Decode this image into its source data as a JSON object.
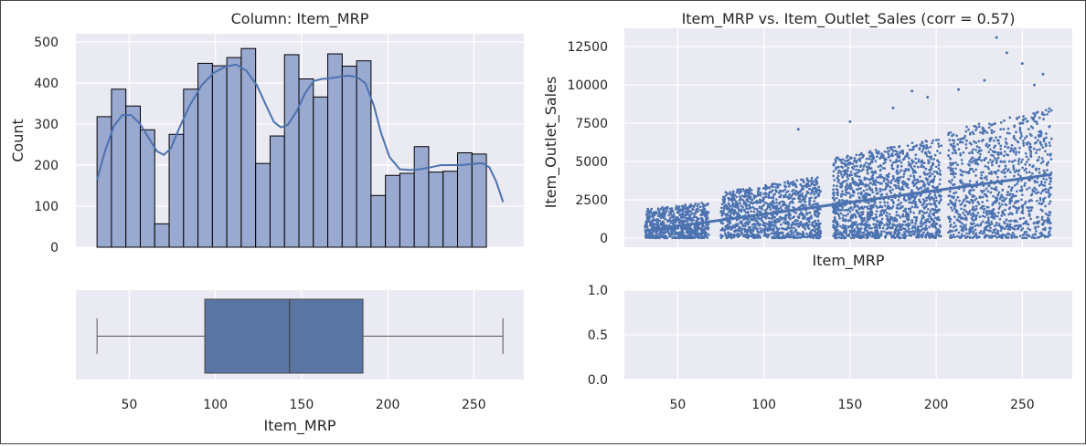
{
  "chart_data": [
    {
      "id": "hist",
      "type": "bar",
      "title": "Column: Item_MRP",
      "xlabel": "",
      "ylabel": "Count",
      "ylim": [
        0,
        520
      ],
      "xlim": [
        19,
        279
      ],
      "yticks": [
        0,
        100,
        200,
        300,
        400,
        500
      ],
      "bin_width": 8.37,
      "bin_start": 31.29,
      "bin_edges_note": "",
      "values": [
        318,
        385,
        344,
        286,
        57,
        275,
        385,
        448,
        442,
        462,
        484,
        204,
        271,
        469,
        410,
        366,
        471,
        441,
        454,
        126,
        175,
        180,
        245,
        183,
        185,
        230,
        227
      ],
      "kde": [
        [
          31.3,
          165
        ],
        [
          36,
          235
        ],
        [
          41,
          295
        ],
        [
          46,
          322
        ],
        [
          51,
          322
        ],
        [
          56,
          302
        ],
        [
          61,
          268
        ],
        [
          66,
          234
        ],
        [
          70,
          225
        ],
        [
          74,
          240
        ],
        [
          79,
          290
        ],
        [
          85,
          345
        ],
        [
          92,
          395
        ],
        [
          99,
          425
        ],
        [
          106,
          440
        ],
        [
          112,
          445
        ],
        [
          118,
          430
        ],
        [
          124,
          395
        ],
        [
          130,
          340
        ],
        [
          134,
          305
        ],
        [
          138,
          292
        ],
        [
          142,
          298
        ],
        [
          147,
          330
        ],
        [
          152,
          375
        ],
        [
          157,
          405
        ],
        [
          162,
          410
        ],
        [
          167,
          412
        ],
        [
          172,
          415
        ],
        [
          177,
          418
        ],
        [
          182,
          415
        ],
        [
          187,
          400
        ],
        [
          192,
          345
        ],
        [
          196,
          280
        ],
        [
          201,
          220
        ],
        [
          207,
          190
        ],
        [
          213,
          188
        ],
        [
          219,
          190
        ],
        [
          225,
          195
        ],
        [
          231,
          200
        ],
        [
          237,
          200
        ],
        [
          243,
          200
        ],
        [
          249,
          203
        ],
        [
          255,
          205
        ],
        [
          259,
          195
        ],
        [
          263,
          160
        ],
        [
          267,
          110
        ]
      ]
    },
    {
      "id": "box",
      "type": "box",
      "xlabel": "Item_MRP",
      "xticks": [
        50,
        100,
        150,
        200,
        250
      ],
      "whisker_low": 31.29,
      "q1": 93.83,
      "median": 143.01,
      "q3": 185.64,
      "whisker_high": 266.89
    },
    {
      "id": "scatter",
      "type": "scatter",
      "title": "Item_MRP vs. Item_Outlet_Sales (corr = 0.57)",
      "xlabel": "Item_MRP",
      "ylabel": "Item_Outlet_Sales",
      "xlim": [
        19,
        279
      ],
      "ylim": [
        -600,
        13700
      ],
      "yticks": [
        0,
        2500,
        5000,
        7500,
        10000,
        12500
      ],
      "n_points": 8523,
      "fit_line": {
        "slope": 15.55,
        "intercept": 0
      },
      "clusters": [
        {
          "xmin": 31,
          "xmax": 68,
          "ymin": 0,
          "ymax_base": 1900,
          "ymax_slope": 12
        },
        {
          "xmin": 75,
          "xmax": 133,
          "ymin": 0,
          "ymax_base": 3000,
          "ymax_slope": 18
        },
        {
          "xmin": 140,
          "xmax": 203,
          "ymin": 0,
          "ymax_base": 5200,
          "ymax_slope": 22
        },
        {
          "xmin": 207,
          "xmax": 267,
          "ymin": 0,
          "ymax_base": 7000,
          "ymax_slope": 25
        }
      ]
    },
    {
      "id": "empty",
      "type": "scatter",
      "ylim": [
        0,
        1
      ],
      "yticks": [
        "0.0",
        "0.5",
        "1.0"
      ],
      "xticks": [
        50,
        100,
        150,
        200,
        250
      ]
    }
  ],
  "colors": {
    "axes_bg": "#eaeaf2",
    "grid": "#ffffff",
    "bar_fill": "#9aa9cf",
    "bar_edge": "#000000",
    "line": "#4c72b0",
    "box_fill": "#5975a4",
    "whisker": "#555555"
  }
}
